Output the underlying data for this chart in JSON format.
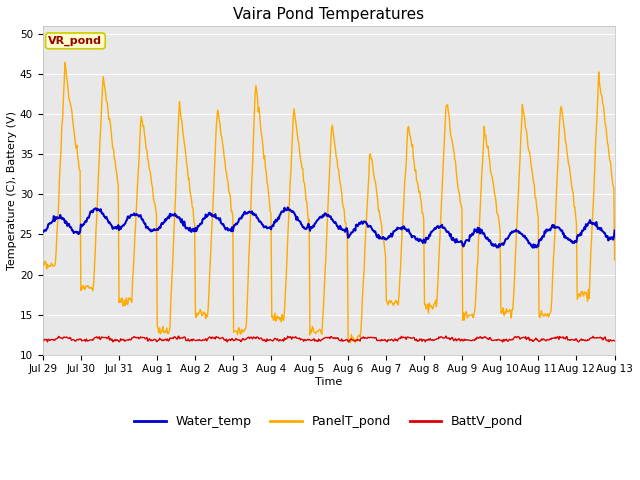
{
  "title": "Vaira Pond Temperatures",
  "xlabel": "Time",
  "ylabel": "Temperature (C), Battery (V)",
  "ylim": [
    10,
    51
  ],
  "yticks": [
    10,
    15,
    20,
    25,
    30,
    35,
    40,
    45,
    50
  ],
  "fig_bg": "#ffffff",
  "plot_bg": "#e8e8e8",
  "annotation_text": "VR_pond",
  "annotation_bg": "#ffffcc",
  "annotation_border": "#cccc00",
  "annotation_text_color": "#990000",
  "water_color": "#0000cc",
  "panel_color": "#ffaa00",
  "batt_color": "#dd0000",
  "xtick_labels": [
    "Jul 29",
    "Jul 30",
    "Jul 31",
    "Aug 1",
    "Aug 2",
    "Aug 3",
    "Aug 4",
    "Aug 5",
    "Aug 6",
    "Aug 7",
    "Aug 8",
    "Aug 9",
    "Aug 10",
    "Aug 11",
    "Aug 12",
    "Aug 13"
  ],
  "num_days": 16,
  "legend_water": "Water_temp",
  "legend_panel": "PanelT_pond",
  "legend_batt": "BattV_pond",
  "title_fontsize": 11,
  "axis_label_fontsize": 8,
  "tick_fontsize": 7.5,
  "legend_fontsize": 9
}
